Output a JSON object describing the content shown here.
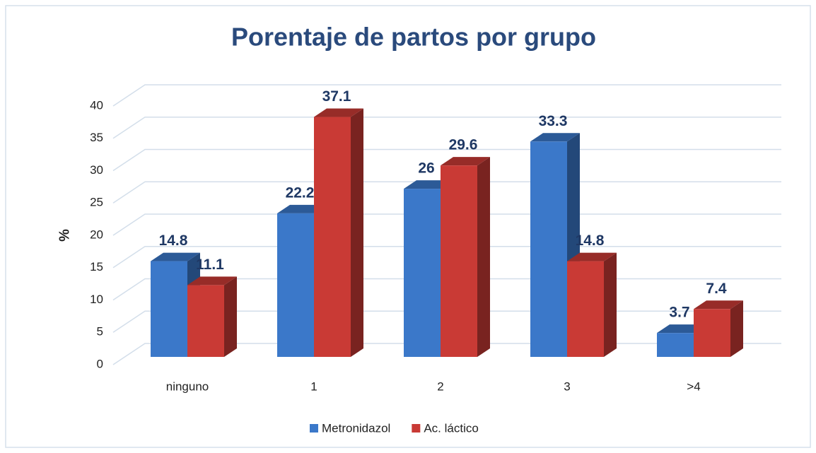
{
  "chart_data": {
    "type": "bar3d",
    "title": "Porentaje de partos por grupo",
    "ylabel": "%",
    "categories": [
      "ninguno",
      "1",
      "2",
      "3",
      ">4"
    ],
    "series": [
      {
        "name": "Metronidazol",
        "color": "#3b78c9",
        "values": [
          14.8,
          22.2,
          26,
          33.3,
          3.7
        ]
      },
      {
        "name": "Ac. láctico",
        "color": "#c93a35",
        "values": [
          11.1,
          37.1,
          29.6,
          14.8,
          7.4
        ]
      }
    ],
    "ylim": [
      0,
      40
    ],
    "yticks": [
      0,
      5,
      10,
      15,
      20,
      25,
      30,
      35,
      40
    ],
    "grid": true,
    "legend": "bottom"
  }
}
